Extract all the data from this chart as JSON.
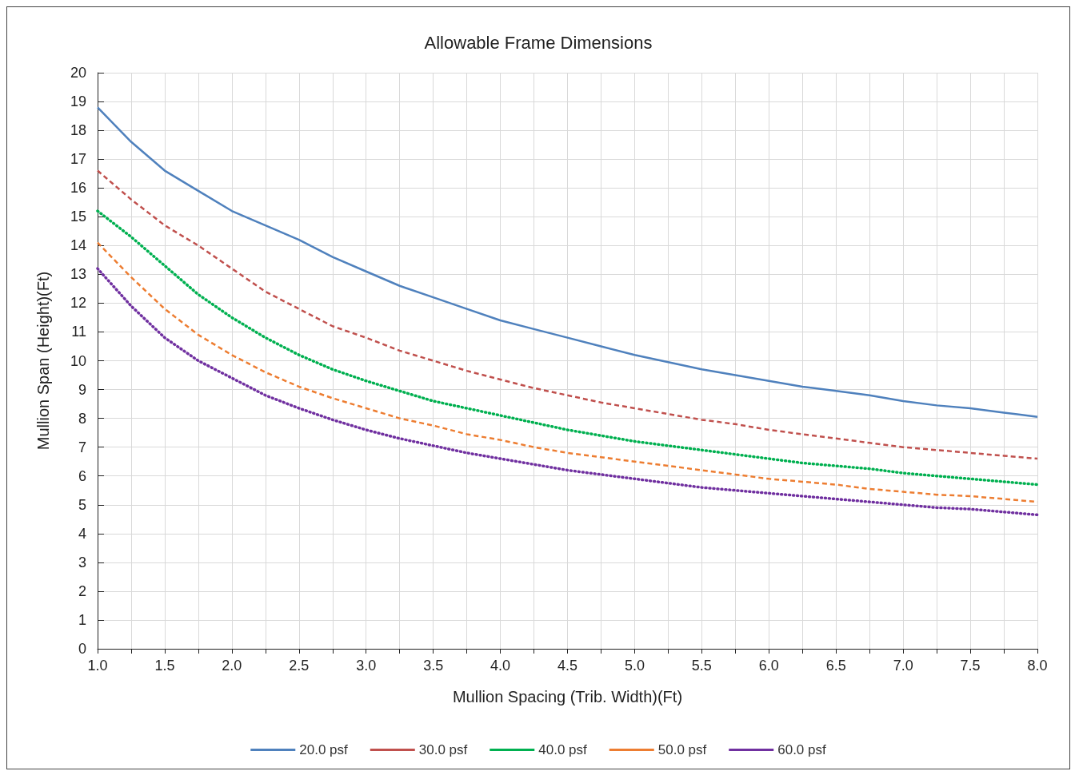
{
  "chart_data": {
    "type": "line",
    "title": "Allowable Frame Dimensions",
    "xlabel": "Mullion Spacing (Trib. Width)(Ft)",
    "ylabel": "Mullion Span (Height)(Ft)",
    "x": [
      1,
      1.25,
      1.5,
      1.75,
      2,
      2.25,
      2.5,
      2.75,
      3,
      3.25,
      3.5,
      3.75,
      4,
      4.25,
      4.5,
      4.75,
      5,
      5.25,
      5.5,
      5.75,
      6,
      6.25,
      6.5,
      6.75,
      7,
      7.25,
      7.5,
      7.75,
      8
    ],
    "series": [
      {
        "name": "20.0 psf",
        "color": "#4f81bd",
        "line_style": "solid",
        "values": [
          18.8,
          17.6,
          16.6,
          15.9,
          15.2,
          14.7,
          14.2,
          13.6,
          13.1,
          12.6,
          12.2,
          11.8,
          11.4,
          11.1,
          10.8,
          10.5,
          10.2,
          9.95,
          9.7,
          9.5,
          9.3,
          9.1,
          8.95,
          8.8,
          8.6,
          8.45,
          8.35,
          8.2,
          8.05
        ]
      },
      {
        "name": "30.0 psf",
        "color": "#c0504d",
        "line_style": "dashed",
        "values": [
          16.6,
          15.6,
          14.7,
          14.0,
          13.2,
          12.4,
          11.8,
          11.2,
          10.8,
          10.35,
          10.0,
          9.65,
          9.35,
          9.05,
          8.8,
          8.55,
          8.35,
          8.15,
          7.95,
          7.8,
          7.6,
          7.45,
          7.3,
          7.15,
          7.0,
          6.9,
          6.8,
          6.7,
          6.6
        ]
      },
      {
        "name": "40.0 psf",
        "color": "#00b050",
        "line_style": "dotted",
        "values": [
          15.2,
          14.3,
          13.3,
          12.3,
          11.5,
          10.8,
          10.2,
          9.7,
          9.3,
          8.95,
          8.6,
          8.35,
          8.1,
          7.85,
          7.6,
          7.4,
          7.2,
          7.05,
          6.9,
          6.75,
          6.6,
          6.45,
          6.35,
          6.25,
          6.1,
          6.0,
          5.9,
          5.8,
          5.7
        ]
      },
      {
        "name": "50.0 psf",
        "color": "#ed7d31",
        "line_style": "dashed",
        "values": [
          14.1,
          12.9,
          11.8,
          10.9,
          10.2,
          9.6,
          9.1,
          8.7,
          8.35,
          8.0,
          7.75,
          7.45,
          7.25,
          7.0,
          6.8,
          6.65,
          6.5,
          6.35,
          6.2,
          6.05,
          5.9,
          5.8,
          5.7,
          5.55,
          5.45,
          5.35,
          5.3,
          5.2,
          5.1
        ]
      },
      {
        "name": "60.0 psf",
        "color": "#7030a0",
        "line_style": "dotted",
        "values": [
          13.2,
          11.9,
          10.8,
          10.0,
          9.4,
          8.8,
          8.35,
          7.95,
          7.6,
          7.3,
          7.05,
          6.8,
          6.6,
          6.4,
          6.2,
          6.05,
          5.9,
          5.75,
          5.6,
          5.5,
          5.4,
          5.3,
          5.2,
          5.1,
          5.0,
          4.9,
          4.85,
          4.75,
          4.65
        ]
      }
    ],
    "xlim": [
      1,
      8
    ],
    "xticks": [
      {
        "value": 1,
        "label": "1.0"
      },
      {
        "value": 1.25,
        "label": null
      },
      {
        "value": 1.5,
        "label": "1.5"
      },
      {
        "value": 1.75,
        "label": null
      },
      {
        "value": 2,
        "label": "2.0"
      },
      {
        "value": 2.25,
        "label": null
      },
      {
        "value": 2.5,
        "label": "2.5"
      },
      {
        "value": 2.75,
        "label": null
      },
      {
        "value": 3,
        "label": "3.0"
      },
      {
        "value": 3.25,
        "label": null
      },
      {
        "value": 3.5,
        "label": "3.5"
      },
      {
        "value": 3.75,
        "label": null
      },
      {
        "value": 4,
        "label": "4.0"
      },
      {
        "value": 4.25,
        "label": null
      },
      {
        "value": 4.5,
        "label": "4.5"
      },
      {
        "value": 4.75,
        "label": null
      },
      {
        "value": 5,
        "label": "5.0"
      },
      {
        "value": 5.25,
        "label": null
      },
      {
        "value": 5.5,
        "label": "5.5"
      },
      {
        "value": 5.75,
        "label": null
      },
      {
        "value": 6,
        "label": "6.0"
      },
      {
        "value": 6.25,
        "label": null
      },
      {
        "value": 6.5,
        "label": "6.5"
      },
      {
        "value": 6.75,
        "label": null
      },
      {
        "value": 7,
        "label": "7.0"
      },
      {
        "value": 7.25,
        "label": null
      },
      {
        "value": 7.5,
        "label": "7.5"
      },
      {
        "value": 7.75,
        "label": null
      },
      {
        "value": 8,
        "label": "8.0"
      }
    ],
    "ylim": [
      0,
      20
    ],
    "yticks": [
      0,
      1,
      2,
      3,
      4,
      5,
      6,
      7,
      8,
      9,
      10,
      11,
      12,
      13,
      14,
      15,
      16,
      17,
      18,
      19,
      20
    ],
    "grid": true,
    "legend": "bottom",
    "marker": "none"
  }
}
